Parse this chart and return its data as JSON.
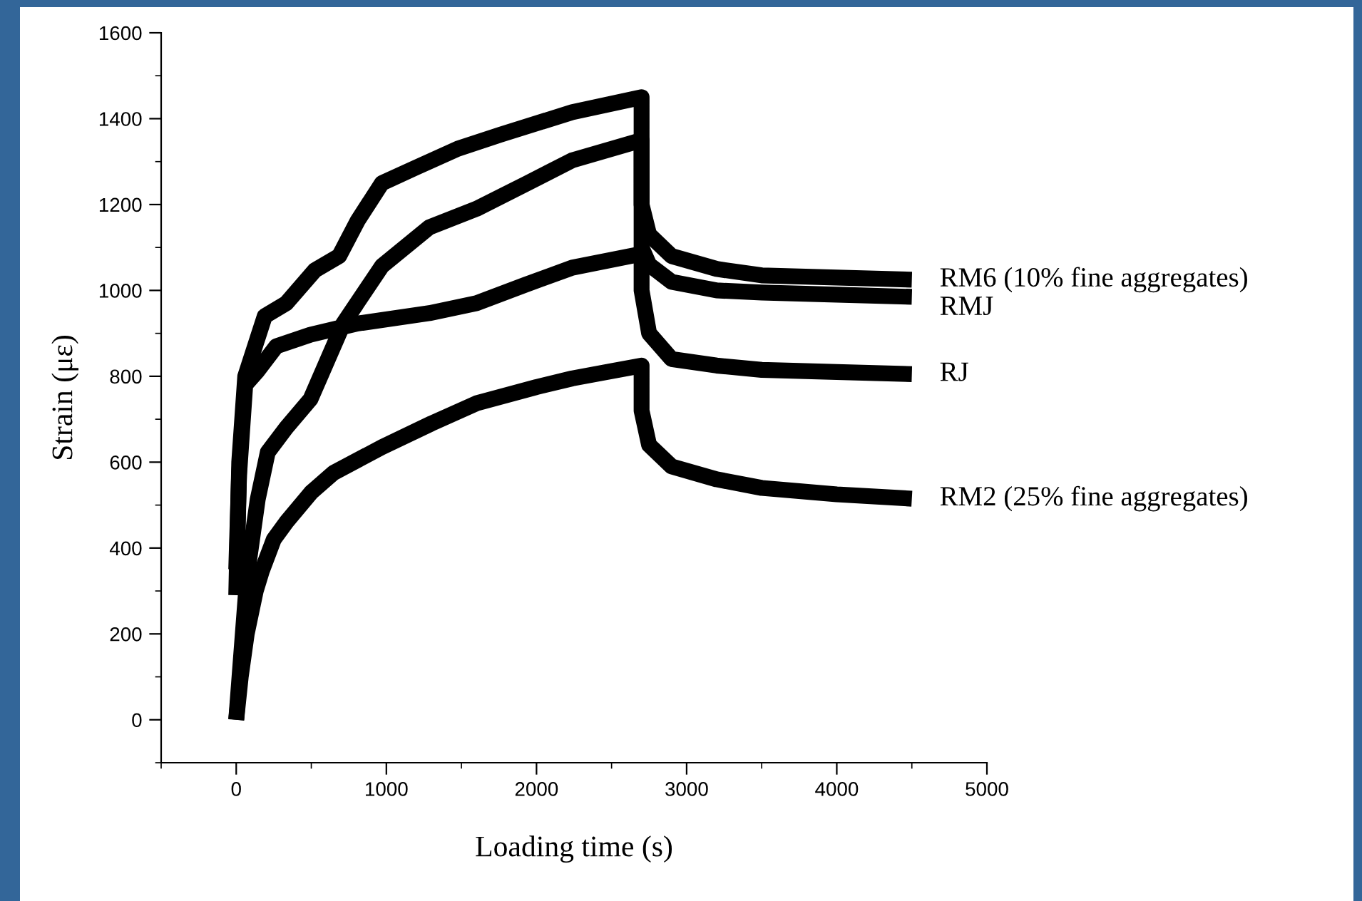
{
  "chart_data": {
    "type": "line",
    "xlabel": "Loading time (s)",
    "ylabel": "Strain (με)",
    "xlim": [
      -500,
      5000
    ],
    "ylim": [
      -100,
      1600
    ],
    "xticks": [
      {
        "value": -500,
        "label": null
      },
      0,
      {
        "value": 500,
        "label": null
      },
      1000,
      {
        "value": 1500,
        "label": null
      },
      2000,
      {
        "value": 2500,
        "label": null
      },
      3000,
      {
        "value": 3500,
        "label": null
      },
      4000,
      {
        "value": 4500,
        "label": null
      },
      5000
    ],
    "yticks": [
      {
        "value": -100,
        "label": null
      },
      0,
      {
        "value": 100,
        "label": null
      },
      200,
      {
        "value": 300,
        "label": null
      },
      400,
      {
        "value": 500,
        "label": null
      },
      600,
      {
        "value": 700,
        "label": null
      },
      800,
      {
        "value": 900,
        "label": null
      },
      1000,
      {
        "value": 1100,
        "label": null
      },
      1200,
      {
        "value": 1300,
        "label": null
      },
      1400,
      {
        "value": 1500,
        "label": null
      },
      1600
    ],
    "grid": false,
    "legend": false,
    "marker": "none",
    "line_style": "solid",
    "series": [
      {
        "name": "RM6 (10% fine aggregates)",
        "color": "#000000",
        "x": [
          0,
          20,
          60,
          190,
          333,
          524,
          686,
          810,
          971,
          1190,
          1476,
          1762,
          2238,
          2700,
          2700,
          2750,
          2900,
          3200,
          3500,
          4000,
          4500
        ],
        "values": [
          290,
          600,
          800,
          940,
          970,
          1047,
          1080,
          1163,
          1250,
          1285,
          1330,
          1363,
          1415,
          1450,
          1200,
          1130,
          1080,
          1050,
          1035,
          1030,
          1025
        ]
      },
      {
        "name": "RMJ",
        "color": "#000000",
        "x": [
          0,
          76,
          143,
          210,
          333,
          495,
          714,
          971,
          1286,
          1600,
          1924,
          2238,
          2700,
          2700,
          2750,
          2900,
          3200,
          3500,
          4000,
          4500
        ],
        "values": [
          0,
          347,
          513,
          623,
          680,
          747,
          923,
          1057,
          1147,
          1190,
          1247,
          1303,
          1350,
          1100,
          1060,
          1020,
          1000,
          995,
          990,
          985
        ]
      },
      {
        "name": "RJ",
        "color": "#000000",
        "x": [
          0,
          19,
          60,
          143,
          267,
          495,
          810,
          1286,
          1600,
          1924,
          2238,
          2700,
          2700,
          2750,
          2900,
          3200,
          3500,
          4000,
          4500
        ],
        "values": [
          350,
          570,
          780,
          813,
          870,
          897,
          923,
          947,
          970,
          1013,
          1053,
          1085,
          1000,
          900,
          840,
          825,
          815,
          810,
          805
        ]
      },
      {
        "name": "RM2 (25% fine aggregates)",
        "color": "#000000",
        "x": [
          0,
          30,
          70,
          130,
          171,
          250,
          333,
          500,
          648,
          971,
          1300,
          1600,
          2000,
          2238,
          2700,
          2700,
          2750,
          2900,
          3200,
          3500,
          4000,
          4500
        ],
        "values": [
          0,
          100,
          200,
          300,
          347,
          420,
          460,
          530,
          575,
          635,
          690,
          737,
          775,
          795,
          825,
          720,
          640,
          590,
          560,
          540,
          525,
          515
        ]
      }
    ]
  }
}
